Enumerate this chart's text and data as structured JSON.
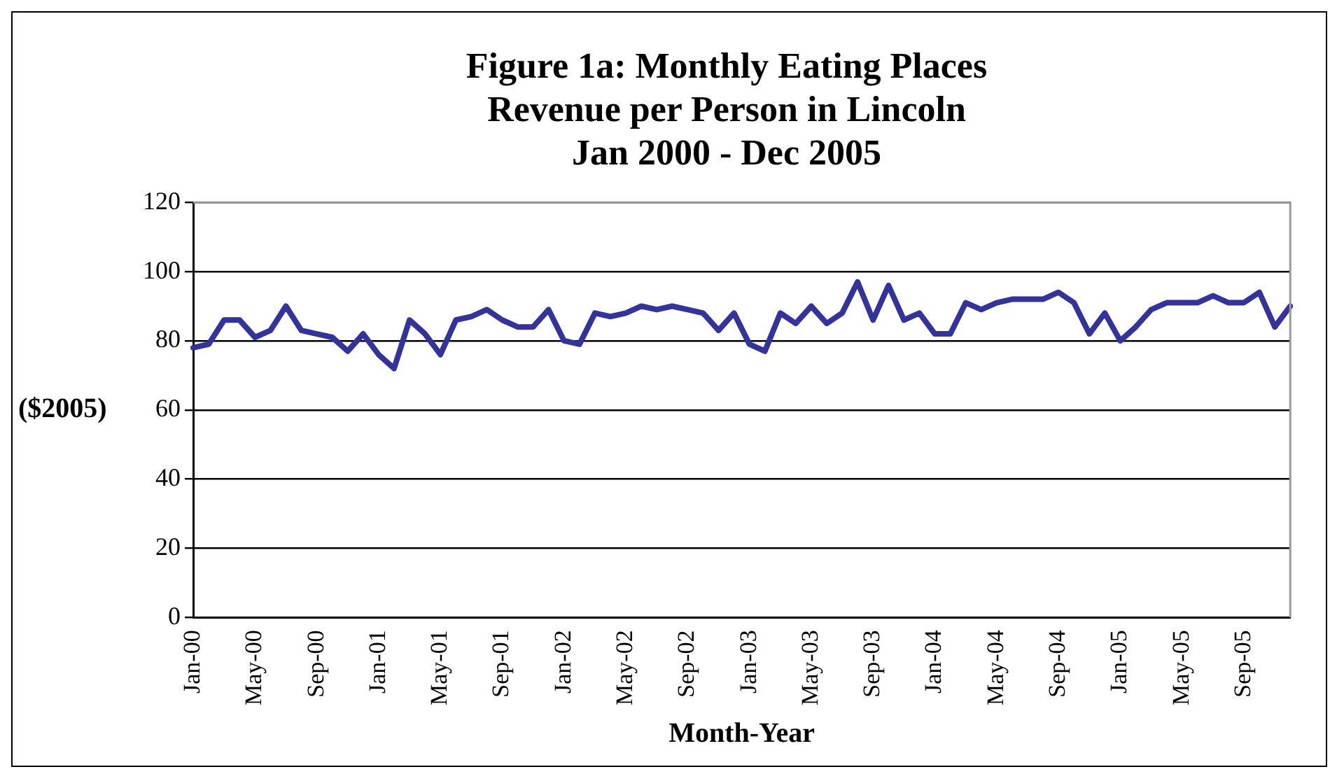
{
  "chart_data": {
    "type": "line",
    "title": "Figure 1a: Monthly Eating Places\nRevenue per Person in Lincoln\nJan 2000 - Dec 2005",
    "xlabel": "Month-Year",
    "ylabel": "($2005)",
    "categories": [
      "Jan-00",
      null,
      null,
      null,
      "May-00",
      null,
      null,
      null,
      "Sep-00",
      null,
      null,
      null,
      "Jan-01",
      null,
      null,
      null,
      "May-01",
      null,
      null,
      null,
      "Sep-01",
      null,
      null,
      null,
      "Jan-02",
      null,
      null,
      null,
      "May-02",
      null,
      null,
      null,
      "Sep-02",
      null,
      null,
      null,
      "Jan-03",
      null,
      null,
      null,
      "May-03",
      null,
      null,
      null,
      "Sep-03",
      null,
      null,
      null,
      "Jan-04",
      null,
      null,
      null,
      "May-04",
      null,
      null,
      null,
      "Sep-04",
      null,
      null,
      null,
      "Jan-05",
      null,
      null,
      null,
      "May-05",
      null,
      null,
      null,
      "Sep-05",
      null,
      null,
      null
    ],
    "series": [
      {
        "color": "#333399",
        "values": [
          78,
          79,
          86,
          86,
          81,
          83,
          90,
          83,
          82,
          81,
          77,
          82,
          76,
          72,
          86,
          82,
          76,
          86,
          87,
          89,
          86,
          84,
          84,
          89,
          80,
          79,
          88,
          87,
          88,
          90,
          89,
          90,
          89,
          88,
          83,
          88,
          79,
          77,
          88,
          85,
          90,
          85,
          88,
          97,
          86,
          96,
          86,
          88,
          82,
          82,
          91,
          89,
          91,
          92,
          92,
          92,
          94,
          91,
          82,
          88,
          80,
          84,
          89,
          91,
          91,
          91,
          93,
          91,
          91,
          94,
          84,
          90
        ]
      }
    ],
    "ylim": [
      0,
      120
    ],
    "yticks": [
      0,
      20,
      40,
      60,
      80,
      100,
      120
    ],
    "grid": "y",
    "legend": false,
    "marker": "none",
    "line_style": "solid"
  }
}
